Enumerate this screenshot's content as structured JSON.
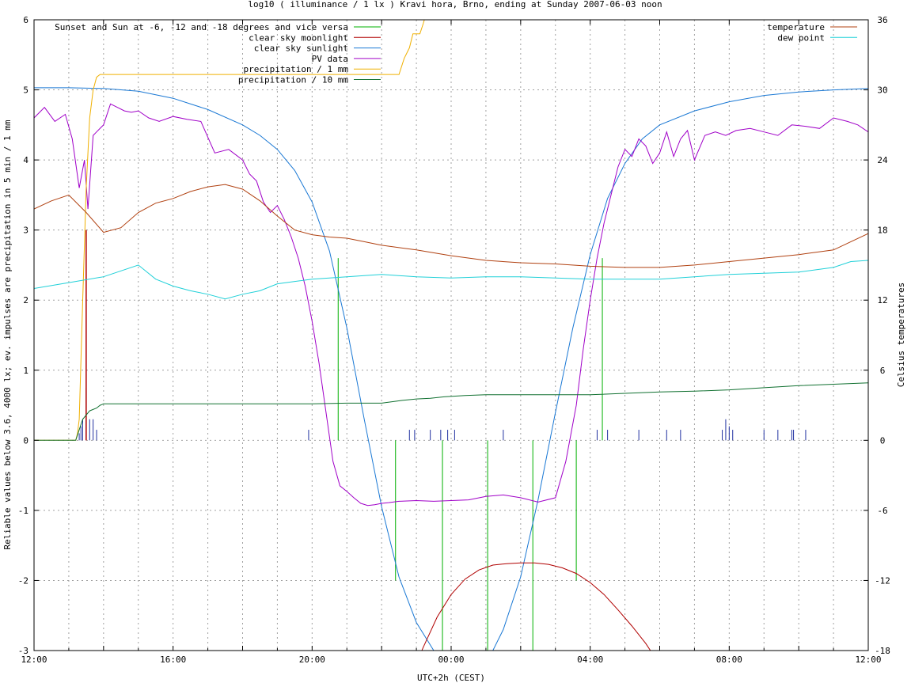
{
  "chart_data": {
    "type": "line",
    "title": "log10 ( illuminance / 1 lx ) Kravi hora, Brno, ending at Sunday 2007-06-03 noon",
    "xlabel": "UTC+2h (CEST)",
    "ylabel_left": "Reliable values below 3.6, 4000 lx; ev. impulses are precipitation in 5 min / 1 mm",
    "ylabel_right": "Celsius temperatures",
    "xlim": [
      0,
      24
    ],
    "ylim_left": [
      -3,
      6
    ],
    "ylim_right": [
      -18,
      36
    ],
    "x_ticks": [
      0,
      2,
      4,
      6,
      8,
      10,
      12,
      14,
      16,
      18,
      20,
      22,
      24
    ],
    "x_tick_labels": [
      "12:00",
      "",
      "16:00",
      "",
      "20:00",
      "",
      "00:00",
      "",
      "04:00",
      "",
      "08:00",
      "",
      "12:00"
    ],
    "y_left_ticks": [
      -3,
      -2,
      -1,
      0,
      1,
      2,
      3,
      4,
      5,
      6
    ],
    "y_left_tick_labels": [
      "-3",
      "-2",
      "-1",
      "0",
      "1",
      "2",
      "3",
      "4",
      "5",
      "6"
    ],
    "y_right_ticks": [
      -18,
      -12,
      -6,
      0,
      6,
      12,
      18,
      24,
      30,
      36
    ],
    "y_right_tick_labels": [
      "-18",
      "-12",
      "-6",
      "0",
      "6",
      "12",
      "18",
      "24",
      "30",
      "36"
    ],
    "grid": true,
    "legend_left_position": "top-left",
    "legend_right_position": "top-right",
    "legend_left": [
      {
        "label": "Sunset and Sun at -6, -12 and -18 degrees and vice versa",
        "color": "#00b000"
      },
      {
        "label": "clear sky moonlight",
        "color": "#b00000"
      },
      {
        "label": "clear sky sunlight",
        "color": "#1a78d4"
      },
      {
        "label": "PV data",
        "color": "#a000c8"
      },
      {
        "label": "precipitation / 1 mm",
        "color": "#f0b000"
      },
      {
        "label": "precipitation / 10 mm",
        "color": "#107030"
      }
    ],
    "legend_right": [
      {
        "label": "temperature",
        "color": "#b04010"
      },
      {
        "label": "dew point",
        "color": "#20d0d8"
      }
    ],
    "sun_markers": [
      {
        "x": 8.75,
        "y": 2.6
      },
      {
        "x": 10.4,
        "y": -2.0
      },
      {
        "x": 11.75,
        "y": -3.0
      },
      {
        "x": 13.05,
        "y": -3.0
      },
      {
        "x": 14.35,
        "y": -3.0
      },
      {
        "x": 15.6,
        "y": -2.0
      },
      {
        "x": 16.35,
        "y": 2.6
      }
    ],
    "series": [
      {
        "name": "clear sky sunlight",
        "color": "#1a78d4",
        "axis": "left",
        "x": [
          0,
          1,
          2,
          3,
          4,
          5,
          6,
          6.5,
          7,
          7.5,
          8,
          8.5,
          9,
          9.5,
          10,
          10.5,
          11,
          11.5,
          12,
          12.5,
          13,
          13.5,
          14,
          14.5,
          15,
          15.5,
          16,
          16.5,
          17,
          17.5,
          18,
          19,
          20,
          21,
          22,
          23,
          24
        ],
        "y": [
          5.03,
          5.03,
          5.02,
          4.98,
          4.88,
          4.72,
          4.5,
          4.35,
          4.15,
          3.85,
          3.4,
          2.7,
          1.6,
          0.3,
          -0.95,
          -1.95,
          -2.6,
          -3.0,
          -3.3,
          -3.35,
          -3.2,
          -2.7,
          -1.95,
          -0.85,
          0.4,
          1.6,
          2.65,
          3.45,
          3.95,
          4.3,
          4.5,
          4.7,
          4.83,
          4.92,
          4.97,
          5.0,
          5.02
        ]
      },
      {
        "name": "clear sky moonlight",
        "color": "#b00000",
        "axis": "left",
        "x": [
          10.8,
          11.2,
          11.6,
          12.0,
          12.4,
          12.8,
          13.2,
          13.6,
          14.0,
          14.4,
          14.8,
          15.2,
          15.6,
          16.0,
          16.4,
          16.8,
          17.2,
          17.6,
          18.0
        ],
        "y": [
          -3.4,
          -2.95,
          -2.52,
          -2.2,
          -1.98,
          -1.85,
          -1.78,
          -1.76,
          -1.75,
          -1.75,
          -1.77,
          -1.82,
          -1.9,
          -2.03,
          -2.2,
          -2.42,
          -2.65,
          -2.9,
          -3.2
        ]
      },
      {
        "name": "PV data",
        "color": "#a000c8",
        "axis": "left",
        "x": [
          0,
          0.3,
          0.6,
          0.9,
          1.1,
          1.3,
          1.45,
          1.55,
          1.7,
          1.8,
          2.0,
          2.2,
          2.4,
          2.6,
          2.8,
          3.0,
          3.3,
          3.6,
          4.0,
          4.4,
          4.8,
          5.2,
          5.6,
          6.0,
          6.2,
          6.4,
          6.6,
          6.8,
          7.0,
          7.2,
          7.4,
          7.6,
          7.8,
          8.0,
          8.2,
          8.4,
          8.6,
          8.8,
          9.0,
          9.2,
          9.4,
          9.6,
          9.8,
          10.0,
          10.2,
          10.5,
          11.0,
          11.5,
          12.0,
          12.5,
          13.0,
          13.5,
          14.0,
          14.5,
          15.0,
          15.3,
          15.6,
          15.8,
          16.0,
          16.2,
          16.4,
          16.6,
          16.8,
          17.0,
          17.2,
          17.4,
          17.6,
          17.8,
          18.0,
          18.2,
          18.4,
          18.6,
          18.8,
          19.0,
          19.3,
          19.6,
          19.9,
          20.2,
          20.6,
          21.0,
          21.4,
          21.8,
          22.2,
          22.6,
          23.0,
          23.4,
          23.7,
          24.0
        ],
        "y": [
          4.6,
          4.75,
          4.55,
          4.65,
          4.3,
          3.6,
          4.0,
          3.3,
          4.35,
          4.4,
          4.5,
          4.8,
          4.75,
          4.7,
          4.68,
          4.7,
          4.6,
          4.55,
          4.62,
          4.58,
          4.55,
          4.1,
          4.15,
          4.0,
          3.8,
          3.7,
          3.4,
          3.25,
          3.35,
          3.15,
          2.9,
          2.6,
          2.2,
          1.7,
          1.1,
          0.4,
          -0.3,
          -0.65,
          -0.73,
          -0.82,
          -0.9,
          -0.93,
          -0.92,
          -0.9,
          -0.89,
          -0.87,
          -0.86,
          -0.87,
          -0.86,
          -0.85,
          -0.8,
          -0.78,
          -0.82,
          -0.88,
          -0.82,
          -0.3,
          0.5,
          1.3,
          2.0,
          2.6,
          3.1,
          3.5,
          3.9,
          4.15,
          4.05,
          4.3,
          4.2,
          3.95,
          4.1,
          4.4,
          4.05,
          4.3,
          4.42,
          4.0,
          4.35,
          4.4,
          4.35,
          4.42,
          4.45,
          4.4,
          4.35,
          4.5,
          4.48,
          4.45,
          4.6,
          4.55,
          4.5,
          4.4
        ]
      },
      {
        "name": "precipitation / 1 mm",
        "color": "#f0b000",
        "axis": "left",
        "x": [
          0,
          1.2,
          1.25,
          1.3,
          1.4,
          1.5,
          1.6,
          1.7,
          1.8,
          1.9,
          2.0,
          10.5,
          10.65,
          10.8,
          10.9,
          11.1,
          11.2,
          11.4,
          11.6
        ],
        "y": [
          0,
          0,
          0.1,
          0.3,
          2.0,
          3.6,
          4.6,
          5.0,
          5.18,
          5.22,
          5.22,
          5.22,
          5.45,
          5.6,
          5.8,
          5.8,
          5.95,
          6.3,
          6.7
        ]
      },
      {
        "name": "precipitation / 10 mm",
        "color": "#107030",
        "axis": "left",
        "x": [
          0,
          1.2,
          1.4,
          1.6,
          1.8,
          1.9,
          2.0,
          2.5,
          3.0,
          8.0,
          9.0,
          10.0,
          10.3,
          10.6,
          11.0,
          11.4,
          11.8,
          12.4,
          13.0,
          14.0,
          16.0,
          17.0,
          18.0,
          19.0,
          20.0,
          21.0,
          22.0,
          23.0,
          24.0
        ],
        "y": [
          0,
          0,
          0.3,
          0.42,
          0.46,
          0.5,
          0.52,
          0.52,
          0.52,
          0.52,
          0.53,
          0.53,
          0.55,
          0.57,
          0.59,
          0.6,
          0.62,
          0.64,
          0.65,
          0.65,
          0.65,
          0.67,
          0.69,
          0.7,
          0.72,
          0.75,
          0.78,
          0.8,
          0.82
        ]
      },
      {
        "name": "temperature",
        "color": "#b04010",
        "axis": "right",
        "x": [
          0,
          0.5,
          1.0,
          1.5,
          2.0,
          2.5,
          3.0,
          3.5,
          4.0,
          4.5,
          5.0,
          5.5,
          6.0,
          6.5,
          7.0,
          7.5,
          8.0,
          8.5,
          9.0,
          9.5,
          10.0,
          11.0,
          12.0,
          13.0,
          14.0,
          15.0,
          16.0,
          17.0,
          18.0,
          19.0,
          20.0,
          21.0,
          22.0,
          23.0,
          23.5,
          24.0
        ],
        "y": [
          19.8,
          20.5,
          21.0,
          19.5,
          17.8,
          18.2,
          19.5,
          20.3,
          20.7,
          21.3,
          21.7,
          21.9,
          21.5,
          20.5,
          19.2,
          18.0,
          17.6,
          17.4,
          17.3,
          17.0,
          16.7,
          16.3,
          15.8,
          15.4,
          15.2,
          15.1,
          14.9,
          14.8,
          14.8,
          15.0,
          15.3,
          15.6,
          15.9,
          16.3,
          17.0,
          17.7
        ]
      },
      {
        "name": "dew point",
        "color": "#20d0d8",
        "axis": "right",
        "x": [
          0,
          1.0,
          2.0,
          3.0,
          3.5,
          4.0,
          4.5,
          5.0,
          5.5,
          6.0,
          6.5,
          7.0,
          7.5,
          8.0,
          9.0,
          10.0,
          11.0,
          12.0,
          13.0,
          14.0,
          15.0,
          16.0,
          17.0,
          18.0,
          19.0,
          20.0,
          21.0,
          22.0,
          23.0,
          23.5,
          24.0
        ],
        "y": [
          13.0,
          13.5,
          14.0,
          15.0,
          13.8,
          13.2,
          12.8,
          12.5,
          12.1,
          12.5,
          12.8,
          13.4,
          13.6,
          13.8,
          14.0,
          14.2,
          14.0,
          13.9,
          14.0,
          14.0,
          13.9,
          13.8,
          13.8,
          13.8,
          14.0,
          14.2,
          14.3,
          14.4,
          14.8,
          15.3,
          15.4
        ]
      }
    ],
    "impulses": {
      "color": "#2030a0",
      "axis": "left",
      "x": [
        1.3,
        1.35,
        1.4,
        1.5,
        1.6,
        1.7,
        1.8,
        7.9,
        10.8,
        10.95,
        11.4,
        11.7,
        11.9,
        12.1,
        13.5,
        16.2,
        16.5,
        17.4,
        18.2,
        18.6,
        19.8,
        19.9,
        20.0,
        20.1,
        21.0,
        21.4,
        21.8,
        21.85,
        22.2
      ],
      "y": [
        0.1,
        0.2,
        0.3,
        0.75,
        0.3,
        0.3,
        0.15,
        0.15,
        0.15,
        0.15,
        0.15,
        0.15,
        0.15,
        0.15,
        0.15,
        0.15,
        0.15,
        0.15,
        0.15,
        0.15,
        0.15,
        0.3,
        0.2,
        0.15,
        0.15,
        0.15,
        0.15,
        0.15,
        0.15
      ]
    },
    "moon_impulse": {
      "color": "#b00000",
      "x": 1.5,
      "y": 3.0
    }
  }
}
